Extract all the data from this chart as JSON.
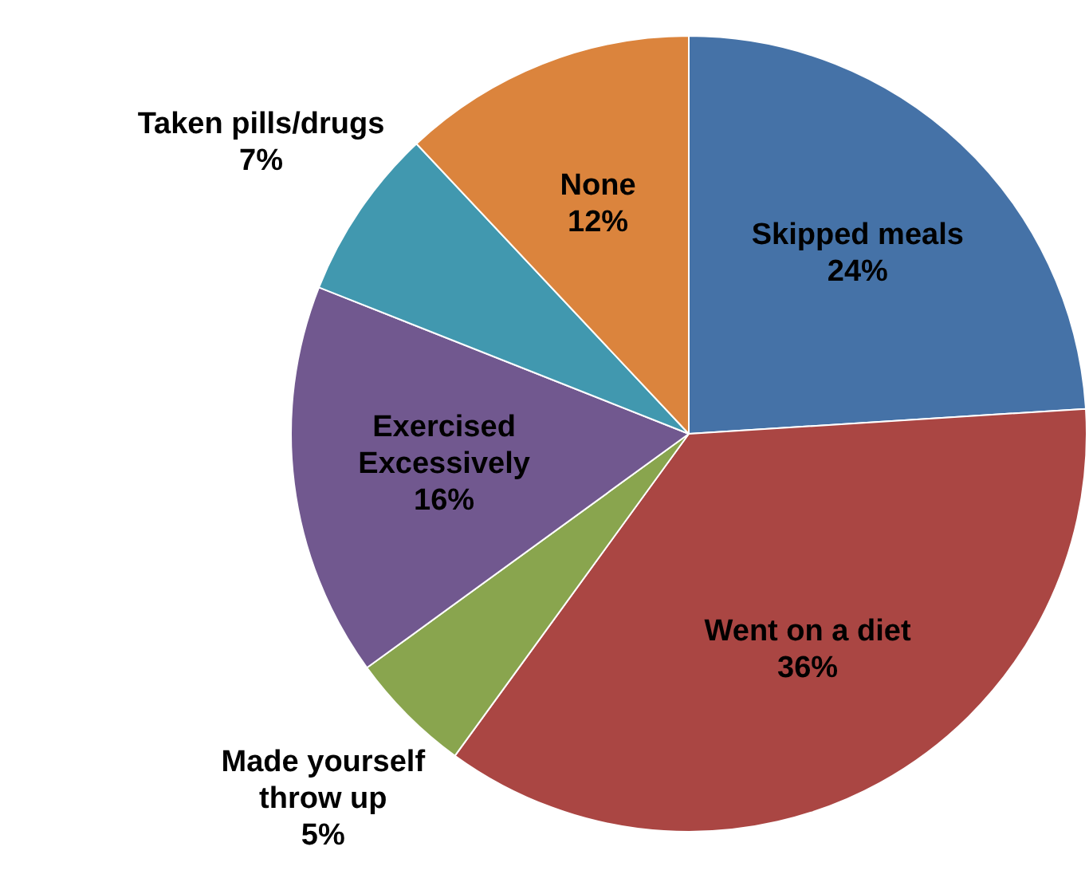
{
  "chart_data": {
    "type": "pie",
    "categories": [
      "Skipped meals",
      "Went on a diet",
      "Made yourself throw up",
      "Exercised Excessively",
      "Taken pills/drugs",
      "None"
    ],
    "values": [
      24,
      36,
      5,
      16,
      7,
      12
    ],
    "colors": [
      "#4572a7",
      "#aa4643",
      "#89a54e",
      "#71588f",
      "#4198af",
      "#db843d"
    ],
    "value_labels": [
      "24%",
      "36%",
      "5%",
      "16%",
      "7%",
      "12%"
    ],
    "legend": false
  }
}
